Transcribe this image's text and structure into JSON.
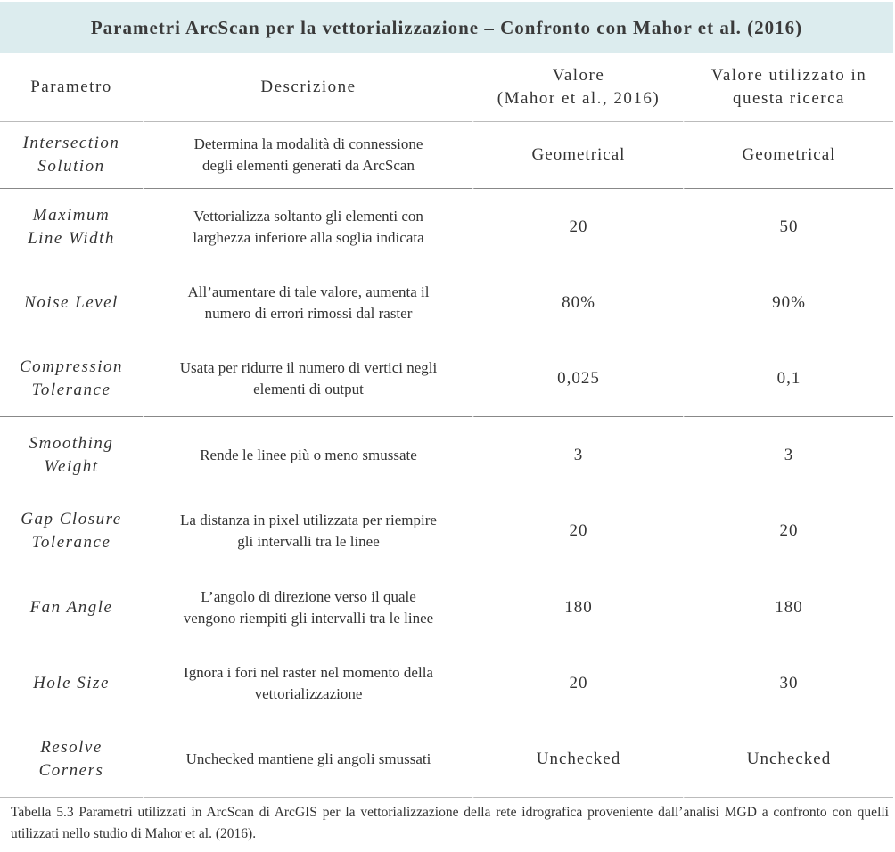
{
  "table": {
    "title": "Parametri ArcScan per la vettorializzazione – Confronto con Mahor et al. (2016)",
    "headers": {
      "parametro": "Parametro",
      "descrizione": "Descrizione",
      "valore_mahor_l1": "Valore",
      "valore_mahor_l2": "(Mahor et al., 2016)",
      "valore_ricerca_l1": "Valore utilizzato in",
      "valore_ricerca_l2": "questa ricerca"
    },
    "rows": [
      {
        "param_l1": "Intersection",
        "param_l2": "Solution",
        "desc_l1": "Determina la modalità di connessione",
        "desc_l2": "degli elementi generati da ArcScan",
        "mahor": "Geometrical",
        "ricerca": "Geometrical"
      },
      {
        "param_l1": "Maximum",
        "param_l2": "Line Width",
        "desc_l1": "Vettorializza soltanto gli elementi con",
        "desc_l2": "larghezza inferiore alla soglia indicata",
        "mahor": "20",
        "ricerca": "50"
      },
      {
        "param_l1": "Noise Level",
        "param_l2": "",
        "desc_l1": "All’aumentare di tale valore, aumenta il",
        "desc_l2": "numero di errori rimossi dal raster",
        "mahor": "80%",
        "ricerca": "90%"
      },
      {
        "param_l1": "Compression",
        "param_l2": "Tolerance",
        "desc_l1": "Usata per ridurre il numero di vertici negli",
        "desc_l2": "elementi di output",
        "mahor": "0,025",
        "ricerca": "0,1"
      },
      {
        "param_l1": "Smoothing",
        "param_l2": "Weight",
        "desc_l1": "Rende le linee più o meno smussate",
        "desc_l2": "",
        "mahor": "3",
        "ricerca": "3"
      },
      {
        "param_l1": "Gap Closure",
        "param_l2": "Tolerance",
        "desc_l1": "La distanza in pixel utilizzata per riempire",
        "desc_l2": "gli intervalli tra le linee",
        "mahor": "20",
        "ricerca": "20"
      },
      {
        "param_l1": "Fan Angle",
        "param_l2": "",
        "desc_l1": "L’angolo di direzione verso il quale",
        "desc_l2": "vengono riempiti gli intervalli tra le linee",
        "mahor": "180",
        "ricerca": "180"
      },
      {
        "param_l1": "Hole Size",
        "param_l2": "",
        "desc_l1": "Ignora i fori nel raster nel momento della",
        "desc_l2": "vettorializzazione",
        "mahor": "20",
        "ricerca": "30"
      },
      {
        "param_l1": "Resolve",
        "param_l2": "Corners",
        "desc_l1": "Unchecked mantiene gli angoli smussati",
        "desc_l2": "",
        "mahor": "Unchecked",
        "ricerca": "Unchecked"
      }
    ]
  },
  "caption": "Tabella 5.3 Parametri utilizzati in ArcScan di ArcGIS per la vettorializzazione della rete idrografica proveniente dall’analisi MGD a confronto con quelli utilizzati nello studio di Mahor et al. (2016)."
}
